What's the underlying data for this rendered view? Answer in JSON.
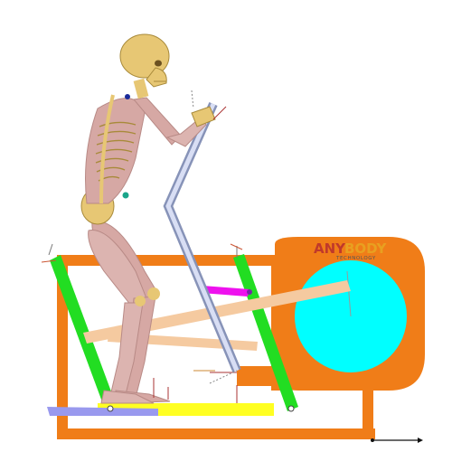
{
  "viewport": {
    "background": "#ffffff",
    "model": "elliptical-trainer-musculoskeletal-model"
  },
  "logo": {
    "brand_part1": "ANY",
    "brand_part2": "BODY",
    "tagline": "TECHNOLOGY",
    "colors": {
      "part1": "#c0392b",
      "part2": "#e8a020",
      "tagline": "#555555"
    }
  },
  "colors": {
    "frame_orange": "#f07d18",
    "flywheel_cyan": "#00ffff",
    "lever_green": "#22dd22",
    "pedal_yellow": "#ffff22",
    "foot_plate_lavender": "#9999ee",
    "magenta_link": "#ee11ee",
    "handle_steel": "#b8c4e6",
    "tan_rod": "#f5caa0",
    "bone": "#e7c774",
    "muscle": "#d6a8a4",
    "marker_teal": "#1aa58a"
  },
  "icons": {
    "skeleton": "human-skeleton-icon",
    "axes": "coordinate-axes-icon"
  }
}
